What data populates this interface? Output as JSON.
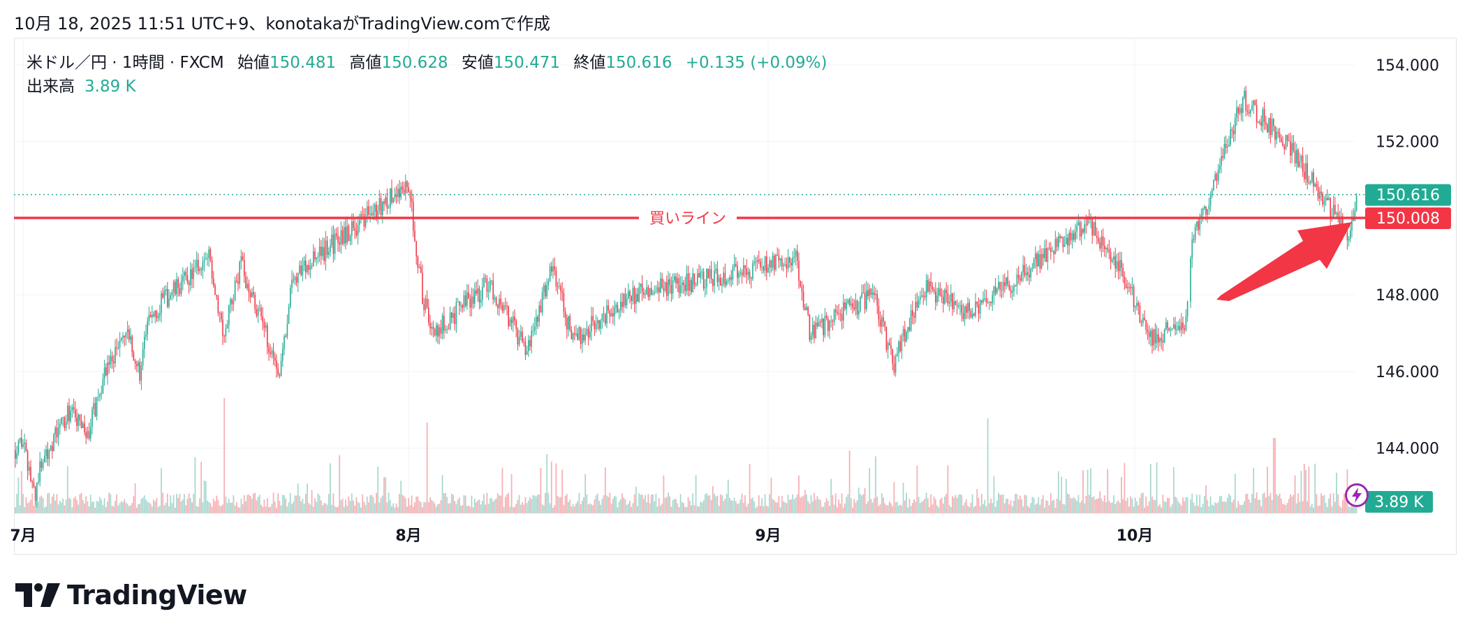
{
  "header": {
    "snapshot_text": "10月 18, 2025 11:51 UTC+9、konotakaがTradingView.comで作成"
  },
  "legend": {
    "symbol": "米ドル／円 · 1時間 · FXCM",
    "open_label": "始値",
    "open_value": "150.481",
    "high_label": "高値",
    "high_value": "150.628",
    "low_label": "安値",
    "low_value": "150.471",
    "close_label": "終値",
    "close_value": "150.616",
    "change": "+0.135 (+0.09%)",
    "volume_label": "出来高",
    "volume_value": "3.89 K"
  },
  "price_labels": {
    "current": "150.616",
    "buy_line": "150.008",
    "volume": "3.89 K"
  },
  "annotation": {
    "buy_line_text": "買いライン",
    "arrow_icon": "arrow-icon"
  },
  "footer": {
    "brand": "TradingView"
  },
  "colors": {
    "up": "#22ab94",
    "down": "#f23645",
    "buy_line": "#f23645",
    "up_volume": "#a7d9d0",
    "down_volume": "#f7b0b4",
    "grid": "#f0f3fa"
  },
  "chart_data": {
    "type": "candlestick",
    "title": "",
    "x_ticks": [
      "7月",
      "8月",
      "9月",
      "10月"
    ],
    "y_ticks": [
      "154.000",
      "152.000",
      "148.000",
      "146.000",
      "144.000"
    ],
    "ylim": [
      142.3,
      154.6
    ],
    "current_price": 150.616,
    "buy_line": 150.008,
    "volume_last": 3.89,
    "grid": true,
    "price_path": [
      {
        "x": "7月",
        "y": 143.8
      },
      {
        "x": "7月",
        "y": 144.4
      },
      {
        "x": "7月",
        "y": 142.8
      },
      {
        "x": "7月",
        "y": 143.7
      },
      {
        "x": "7月",
        "y": 145.0
      },
      {
        "x": "7月",
        "y": 144.3
      },
      {
        "x": "7月",
        "y": 146.0
      },
      {
        "x": "7月",
        "y": 147.0
      },
      {
        "x": "7月",
        "y": 146.0
      },
      {
        "x": "7月",
        "y": 147.5
      },
      {
        "x": "7月",
        "y": 149.0
      },
      {
        "x": "7月",
        "y": 147.0
      },
      {
        "x": "7月",
        "y": 148.8
      },
      {
        "x": "7月",
        "y": 146.0
      },
      {
        "x": "7月",
        "y": 148.5
      },
      {
        "x": "8月",
        "y": 150.9
      },
      {
        "x": "8月",
        "y": 148.0
      },
      {
        "x": "8月",
        "y": 147.0
      },
      {
        "x": "8月",
        "y": 148.3
      },
      {
        "x": "8月",
        "y": 146.5
      },
      {
        "x": "8月",
        "y": 148.8
      },
      {
        "x": "8月",
        "y": 146.8
      },
      {
        "x": "8月",
        "y": 148.0
      },
      {
        "x": "9月",
        "y": 148.9
      },
      {
        "x": "9月",
        "y": 147.0
      },
      {
        "x": "9月",
        "y": 148.0
      },
      {
        "x": "9月",
        "y": 146.2
      },
      {
        "x": "9月",
        "y": 148.2
      },
      {
        "x": "9月",
        "y": 147.5
      },
      {
        "x": "9月",
        "y": 149.9
      },
      {
        "x": "10月",
        "y": 148.5
      },
      {
        "x": "10月",
        "y": 146.8
      },
      {
        "x": "10月",
        "y": 147.4
      },
      {
        "x": "10月",
        "y": 149.2
      },
      {
        "x": "10月",
        "y": 151.0
      },
      {
        "x": "10月",
        "y": 153.1
      },
      {
        "x": "10月",
        "y": 152.2
      },
      {
        "x": "10月",
        "y": 151.0
      },
      {
        "x": "10月",
        "y": 149.5
      },
      {
        "x": "10月",
        "y": 150.616
      }
    ]
  }
}
